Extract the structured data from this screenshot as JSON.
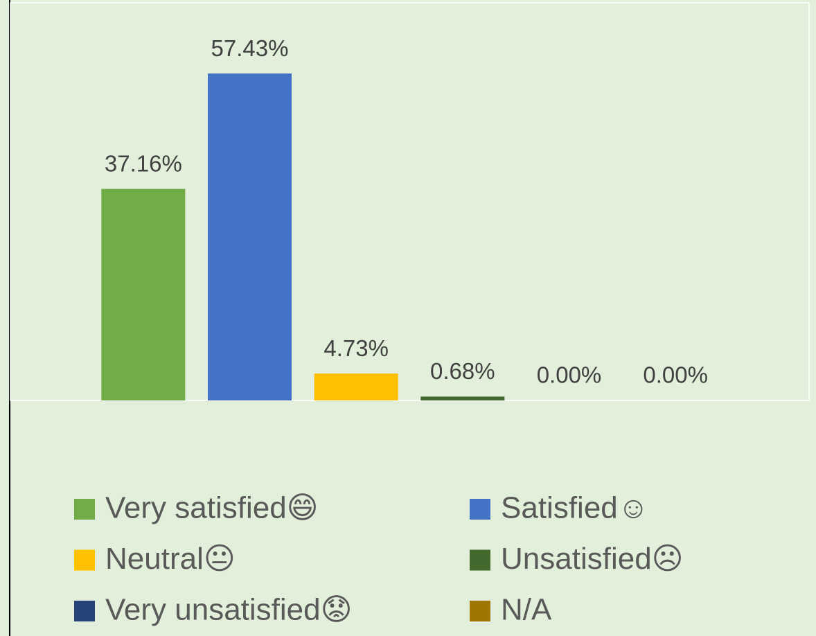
{
  "chart_data": {
    "type": "bar",
    "categories": [
      "Very satisfied😄",
      "Satisfied☺",
      "Neutral😐",
      "Unsatisfied☹",
      "Very unsatisfied😟",
      "N/A"
    ],
    "values": [
      37.16,
      57.43,
      4.73,
      0.68,
      0,
      0
    ],
    "value_labels": [
      "37.16%",
      "57.43%",
      "4.73%",
      "0.68%",
      "0.00%",
      "0.00%"
    ],
    "colors": [
      "#70ad47",
      "#4472c4",
      "#ffc000",
      "#43682b",
      "#264478",
      "#9e7700"
    ],
    "ylim": [
      0,
      60
    ],
    "legend": "bottom"
  }
}
